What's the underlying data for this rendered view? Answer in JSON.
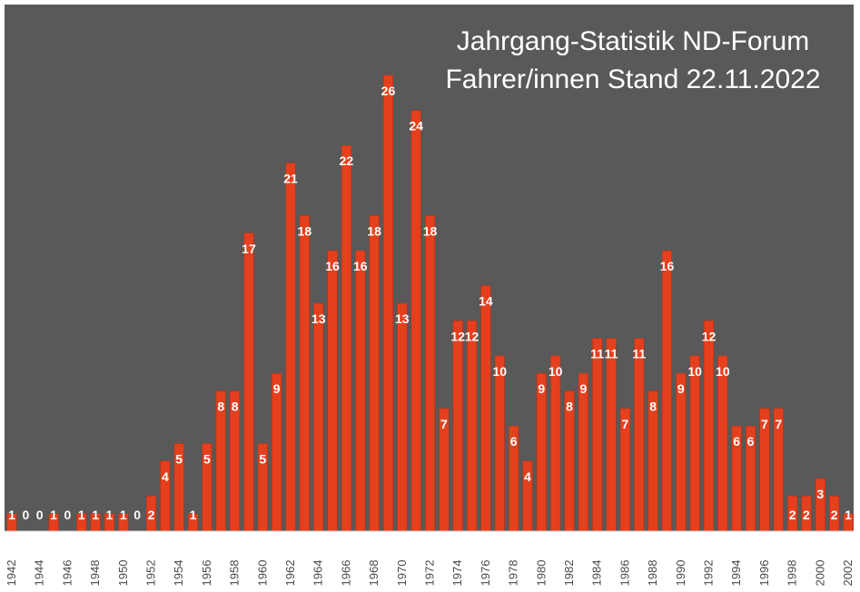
{
  "chart_data": {
    "type": "bar",
    "title": "Jahrgang-Statistik ND-Forum",
    "subtitle": "Fahrer/innen   Stand 22.11.2022",
    "xlabel": "",
    "ylabel": "",
    "ylim": [
      0,
      26
    ],
    "grid": false,
    "legend": "none",
    "colors": {
      "plot_background": "#595959",
      "bar": "#e5401e",
      "bar_edge": "#b8310f",
      "axis": "#d9d9d9",
      "title": "#ffffff",
      "data_label": "#ffffff",
      "tick_label": "#4a4a4a"
    },
    "categories": [
      "1942",
      "1943",
      "1944",
      "1945",
      "1946",
      "1947",
      "1948",
      "1949",
      "1950",
      "1951",
      "1952",
      "1953",
      "1954",
      "1955",
      "1956",
      "1957",
      "1958",
      "1959",
      "1960",
      "1961",
      "1962",
      "1963",
      "1964",
      "1965",
      "1966",
      "1967",
      "1968",
      "1969",
      "1970",
      "1971",
      "1972",
      "1973",
      "1974",
      "1975",
      "1976",
      "1977",
      "1978",
      "1979",
      "1980",
      "1981",
      "1982",
      "1983",
      "1984",
      "1985",
      "1986",
      "1987",
      "1988",
      "1989",
      "1990",
      "1991",
      "1992",
      "1993",
      "1994",
      "1995",
      "1996",
      "1997",
      "1998",
      "1999",
      "2000",
      "2001",
      "2002"
    ],
    "tick_labels": [
      "1942",
      "1944",
      "1946",
      "1948",
      "1950",
      "1952",
      "1954",
      "1956",
      "1958",
      "1960",
      "1962",
      "1964",
      "1966",
      "1968",
      "1970",
      "1972",
      "1974",
      "1976",
      "1978",
      "1980",
      "1982",
      "1984",
      "1986",
      "1988",
      "1990",
      "1992",
      "1994",
      "1996",
      "1998",
      "2000",
      "2002"
    ],
    "values": [
      1,
      0,
      0,
      1,
      0,
      1,
      1,
      1,
      1,
      0,
      2,
      4,
      5,
      1,
      5,
      8,
      8,
      17,
      5,
      9,
      21,
      18,
      13,
      16,
      22,
      16,
      18,
      26,
      13,
      24,
      18,
      7,
      12,
      12,
      14,
      10,
      6,
      4,
      9,
      10,
      8,
      9,
      11,
      11,
      7,
      11,
      8,
      16,
      9,
      10,
      12,
      10,
      6,
      6,
      7,
      7,
      2,
      2,
      3,
      2,
      1
    ]
  }
}
